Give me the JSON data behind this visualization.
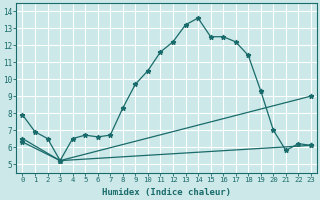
{
  "title": "",
  "xlabel": "Humidex (Indice chaleur)",
  "ylabel": "",
  "bg_color": "#cce8e8",
  "grid_color": "#ffffff",
  "line_color": "#1a6b6b",
  "xlim": [
    -0.5,
    23.5
  ],
  "ylim": [
    4.5,
    14.5
  ],
  "yticks": [
    5,
    6,
    7,
    8,
    9,
    10,
    11,
    12,
    13,
    14
  ],
  "xticks": [
    0,
    1,
    2,
    3,
    4,
    5,
    6,
    7,
    8,
    9,
    10,
    11,
    12,
    13,
    14,
    15,
    16,
    17,
    18,
    19,
    20,
    21,
    22,
    23
  ],
  "series": [
    {
      "x": [
        0,
        1,
        2,
        3,
        4,
        5,
        6,
        7,
        8,
        9,
        10,
        11,
        12,
        13,
        14,
        15,
        16,
        17,
        18,
        19,
        20,
        21,
        22,
        23
      ],
      "y": [
        7.9,
        6.9,
        6.5,
        5.2,
        6.5,
        6.7,
        6.6,
        6.7,
        8.3,
        9.7,
        10.5,
        11.6,
        12.2,
        13.2,
        13.6,
        12.5,
        12.5,
        12.2,
        11.4,
        9.3,
        7.0,
        5.8,
        6.2,
        6.1
      ]
    },
    {
      "x": [
        0,
        3,
        23
      ],
      "y": [
        6.5,
        5.2,
        9.0
      ]
    },
    {
      "x": [
        0,
        3,
        23
      ],
      "y": [
        6.3,
        5.2,
        6.1
      ]
    }
  ]
}
